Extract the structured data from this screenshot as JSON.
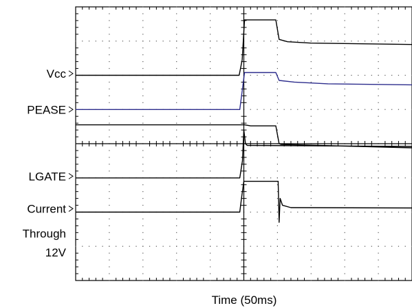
{
  "chart_data": {
    "type": "line",
    "title": "",
    "xlabel": "Time  (50ms)",
    "ylabel": "",
    "grid": true,
    "x_divisions": 10,
    "y_divisions": 8,
    "xlim": [
      0,
      10
    ],
    "ylim": [
      0,
      8
    ],
    "channel_labels": [
      {
        "text": "Vcc",
        "y": 6.05
      },
      {
        "text": "PEASE",
        "y": 5.0
      },
      {
        "text": "LGATE",
        "y": 3.05
      },
      {
        "text": "Current",
        "y": 2.1
      },
      {
        "text": "Through",
        "y": 1.38
      },
      {
        "text": "12V",
        "y": 0.82
      }
    ],
    "series": [
      {
        "color": "#000000",
        "x": [
          0,
          4.86,
          4.95,
          5.02,
          5.95,
          6.05,
          6.3,
          7.0,
          10.0
        ],
        "y": [
          6.0,
          6.0,
          6.45,
          7.62,
          7.62,
          7.05,
          6.98,
          6.94,
          6.9
        ]
      },
      {
        "color": "#2c2c8c",
        "x": [
          0,
          4.88,
          4.96,
          5.02,
          5.95,
          6.05,
          6.5,
          7.5,
          10.0
        ],
        "y": [
          5.0,
          5.0,
          5.6,
          6.08,
          6.08,
          5.85,
          5.8,
          5.75,
          5.72
        ]
      },
      {
        "color": "#000000",
        "x": [
          0,
          5.0,
          5.02,
          5.2,
          5.95,
          6.05,
          6.1,
          10.0
        ],
        "y": [
          4.55,
          4.55,
          4.55,
          4.52,
          4.52,
          4.0,
          3.98,
          3.88
        ]
      },
      {
        "color": "#000000",
        "x": [
          0,
          4.88,
          4.96,
          5.0,
          5.05,
          5.1,
          10.0
        ],
        "y": [
          3.0,
          3.0,
          3.5,
          4.4,
          4.0,
          3.95,
          3.92
        ]
      },
      {
        "color": "#000000",
        "x": [
          0,
          4.88,
          4.93,
          5.0,
          5.95,
          6.02,
          6.05,
          6.08,
          6.15,
          6.4,
          10.0
        ],
        "y": [
          2.0,
          2.0,
          2.4,
          2.9,
          2.9,
          2.9,
          1.7,
          2.4,
          2.2,
          2.13,
          2.12
        ]
      }
    ]
  }
}
